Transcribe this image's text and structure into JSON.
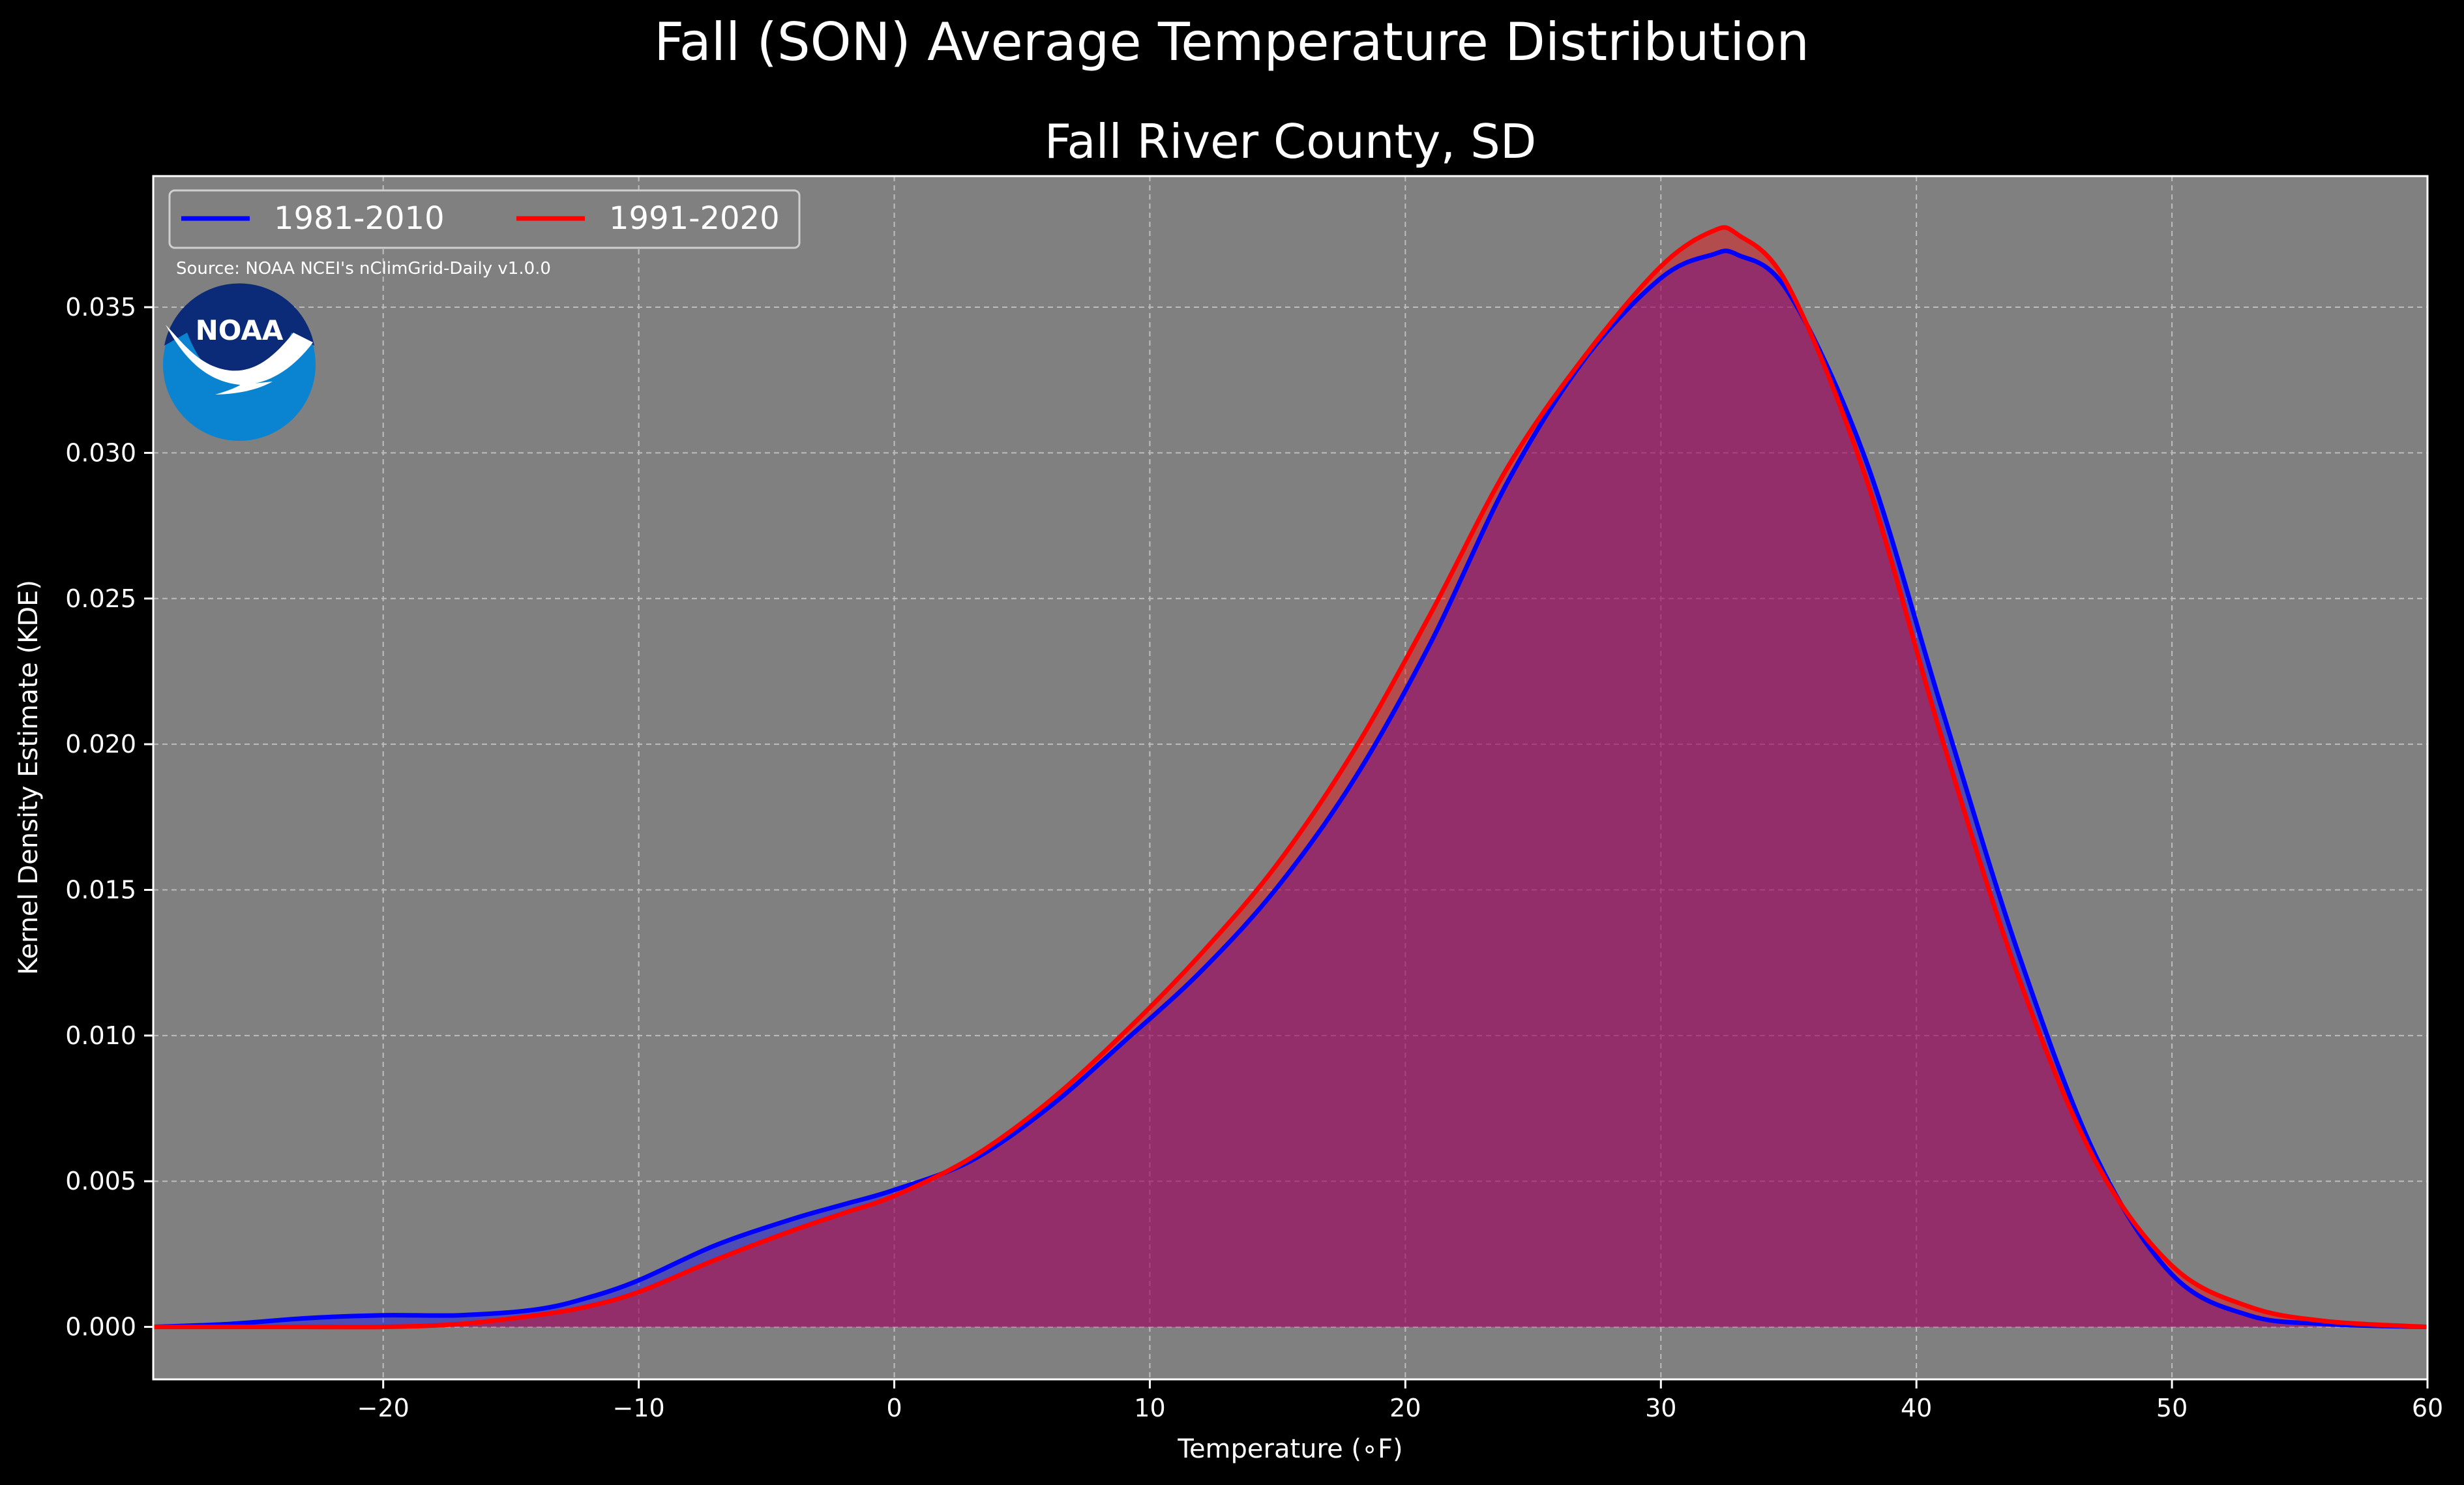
{
  "chart_data": {
    "type": "area",
    "title": "Fall (SON) Average Temperature Distribution",
    "subtitle": "Fall River County, SD",
    "xlabel": "Temperature (∘F)",
    "ylabel": "Kernel Density Estimate (KDE)",
    "xlim": [
      -29,
      60
    ],
    "ylim": [
      -0.0018,
      0.0395
    ],
    "xticks": [
      -20,
      -10,
      0,
      10,
      20,
      30,
      40,
      50,
      60
    ],
    "yticks": [
      0.0,
      0.005,
      0.01,
      0.015,
      0.02,
      0.025,
      0.03,
      0.035
    ],
    "xtick_labels": [
      "−20",
      "−10",
      "0",
      "10",
      "20",
      "30",
      "40",
      "50",
      "60"
    ],
    "ytick_labels": [
      "0.000",
      "0.005",
      "0.010",
      "0.015",
      "0.020",
      "0.025",
      "0.030",
      "0.035"
    ],
    "grid": true,
    "legend_position": "top-left",
    "source_note": "Source: NOAA NCEI's nClimGrid-Daily v1.0.0",
    "logo_text": "NOAA",
    "colors": {
      "background": "#000000",
      "plot_background": "#808080",
      "series_1981": "#0000ff",
      "series_1991": "#ff0000",
      "overlap_fill": "#9e1f5e",
      "logo_blue": "#0a84d0",
      "logo_navy": "#0b2a78"
    },
    "series": [
      {
        "name": "1981-2010",
        "color": "#0000ff",
        "x": [
          -29,
          -26,
          -23,
          -20,
          -17,
          -14,
          -12,
          -10,
          -7,
          -4,
          -2,
          0,
          3,
          6,
          9,
          12,
          15,
          18,
          21,
          24,
          27,
          30,
          32,
          33,
          35,
          38,
          41,
          44,
          47,
          50,
          53,
          56,
          60
        ],
        "y": [
          0.0,
          0.0001,
          0.0003,
          0.0004,
          0.0004,
          0.0006,
          0.001,
          0.0016,
          0.0028,
          0.0037,
          0.0042,
          0.0047,
          0.0057,
          0.0075,
          0.0098,
          0.0122,
          0.0151,
          0.0188,
          0.0235,
          0.029,
          0.0332,
          0.036,
          0.0368,
          0.0368,
          0.0355,
          0.0298,
          0.0212,
          0.0128,
          0.0059,
          0.0018,
          0.0004,
          0.0001,
          0.0
        ]
      },
      {
        "name": "1991-2020",
        "color": "#ff0000",
        "x": [
          -29,
          -26,
          -23,
          -20,
          -17,
          -14,
          -12,
          -10,
          -7,
          -4,
          -2,
          0,
          3,
          6,
          9,
          12,
          15,
          18,
          21,
          24,
          27,
          30,
          32,
          33,
          35,
          38,
          41,
          44,
          47,
          50,
          53,
          56,
          60
        ],
        "y": [
          0.0,
          0.0,
          0.0,
          0.0,
          0.0001,
          0.0004,
          0.0007,
          0.0012,
          0.0023,
          0.0033,
          0.0039,
          0.0045,
          0.0058,
          0.0077,
          0.0101,
          0.0128,
          0.0159,
          0.0198,
          0.0245,
          0.0295,
          0.0333,
          0.0364,
          0.0376,
          0.0375,
          0.0357,
          0.0292,
          0.0202,
          0.012,
          0.0057,
          0.0021,
          0.0007,
          0.0002,
          0.0
        ]
      }
    ]
  }
}
